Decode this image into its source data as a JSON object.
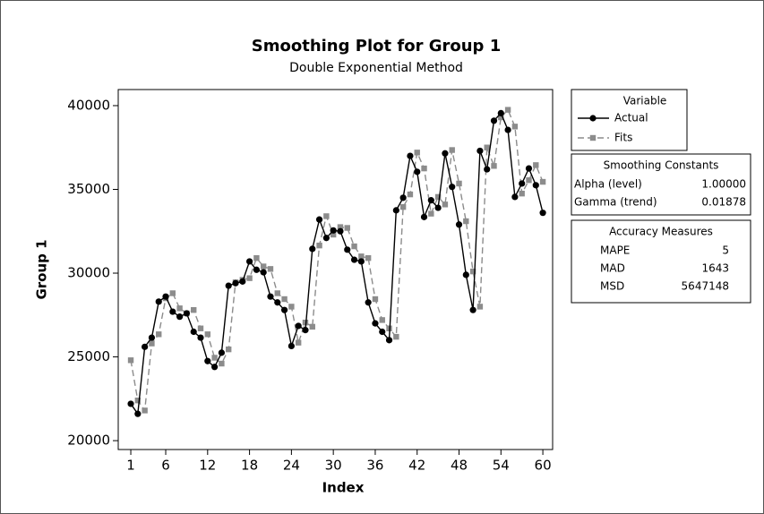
{
  "chart_data": {
    "type": "line",
    "title": "Smoothing Plot for Group 1",
    "subtitle": "Double Exponential Method",
    "x_label": "Index",
    "y_label": "Group 1",
    "x": [
      1,
      2,
      3,
      4,
      5,
      6,
      7,
      8,
      9,
      10,
      11,
      12,
      13,
      14,
      15,
      16,
      17,
      18,
      19,
      20,
      21,
      22,
      23,
      24,
      25,
      26,
      27,
      28,
      29,
      30,
      31,
      32,
      33,
      34,
      35,
      36,
      37,
      38,
      39,
      40,
      41,
      42,
      43,
      44,
      45,
      46,
      47,
      48,
      49,
      50,
      51,
      52,
      53,
      54,
      55,
      56,
      57,
      58,
      59,
      60
    ],
    "xlim": [
      -0.8,
      61.4
    ],
    "xticks": [
      1,
      6,
      12,
      18,
      24,
      30,
      36,
      42,
      48,
      54,
      60
    ],
    "ylim": [
      19470,
      40960
    ],
    "yticks": [
      20000,
      25000,
      30000,
      35000,
      40000
    ],
    "legend_title": "Variable",
    "series": [
      {
        "name": "Actual",
        "color": "#000000",
        "values": [
          22200,
          21600,
          25600,
          26150,
          28300,
          28600,
          27700,
          27400,
          27600,
          26500,
          26150,
          24750,
          24400,
          25250,
          29250,
          29400,
          29500,
          30700,
          30200,
          30050,
          28600,
          28250,
          27800,
          25650,
          26850,
          26600,
          31450,
          33200,
          32100,
          32550,
          32500,
          31400,
          30800,
          30700,
          28250,
          27000,
          26500,
          26000,
          33750,
          34500,
          37000,
          36050,
          33350,
          34350,
          33900,
          37150,
          35150,
          32900,
          29900,
          27800,
          37300,
          36200,
          39100,
          39550,
          38550,
          34550,
          35350,
          36250,
          35250,
          33600
        ]
      },
      {
        "name": "Fits",
        "color": "#8c8c8c",
        "values": [
          24800,
          22400,
          21800,
          25800,
          26350,
          28500,
          28800,
          27900,
          27600,
          27800,
          26700,
          26350,
          24950,
          24600,
          25450,
          29450,
          29600,
          29700,
          30900,
          30400,
          30250,
          28800,
          28450,
          28000,
          25850,
          27050,
          26800,
          31650,
          33400,
          32300,
          32750,
          32700,
          31600,
          31000,
          30900,
          28450,
          27200,
          26700,
          26200,
          33950,
          34700,
          37200,
          36250,
          33550,
          34550,
          34100,
          37350,
          35350,
          33100,
          30100,
          28000,
          37500,
          36400,
          39300,
          39750,
          38750,
          34750,
          35550,
          36450,
          35450
        ]
      }
    ],
    "smoothing_constants": {
      "title": "Smoothing Constants",
      "rows": [
        [
          "Alpha (level)",
          "1.00000"
        ],
        [
          "Gamma (trend)",
          "0.01878"
        ]
      ]
    },
    "accuracy_measures": {
      "title": "Accuracy Measures",
      "rows": [
        [
          "MAPE",
          "5"
        ],
        [
          "MAD",
          "1643"
        ],
        [
          "MSD",
          "5647148"
        ]
      ]
    }
  }
}
